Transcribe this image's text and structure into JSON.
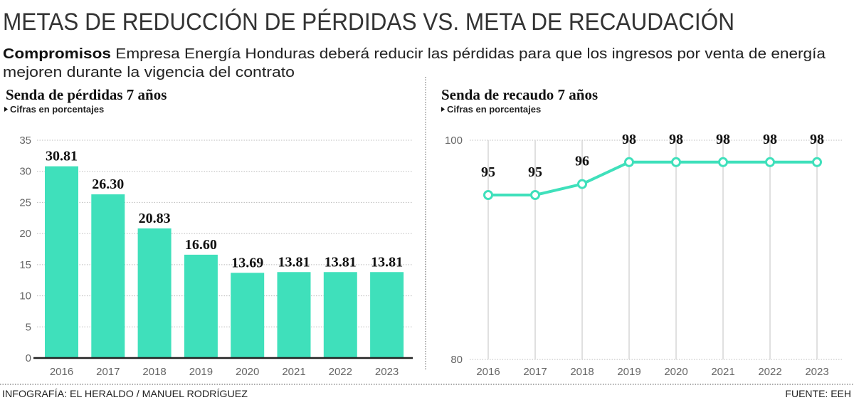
{
  "title": "METAS DE REDUCCIÓN DE PÉRDIDAS VS. META DE RECAUDACIÓN",
  "intro": {
    "lead": "Compromisos",
    "line1": " Empresa Energía Honduras deberá reducir las pérdidas para que los ingresos por venta de energía",
    "line2": "mejoren durante la vigencia del contrato"
  },
  "credit": "INFOGRAFÍA: EL HERALDO / MANUEL RODRÍGUEZ",
  "source": "FUENTE: EEH",
  "colors": {
    "accent": "#3fe0bb",
    "text": "#111111",
    "axis": "#666666"
  },
  "chart_data": [
    {
      "type": "bar",
      "title": "Senda de pérdidas 7 años",
      "subtitle": "Cifras en porcentajes",
      "categories": [
        "2016",
        "2017",
        "2018",
        "2019",
        "2020",
        "2021",
        "2022",
        "2023"
      ],
      "values": [
        30.81,
        26.3,
        20.83,
        16.6,
        13.69,
        13.81,
        13.81,
        13.81
      ],
      "value_labels": [
        "30.81",
        "26.30",
        "20.83",
        "16.60",
        "13.69",
        "13.81",
        "13.81",
        "13.81"
      ],
      "ylim": [
        0,
        35
      ],
      "yticks": [
        "0",
        "5",
        "10",
        "15",
        "20",
        "25",
        "30",
        "35"
      ],
      "grid": true
    },
    {
      "type": "line",
      "title": "Senda de recaudo 7 años",
      "subtitle": "Cifras en porcentajes",
      "categories": [
        "2016",
        "2017",
        "2018",
        "2019",
        "2020",
        "2021",
        "2022",
        "2023"
      ],
      "values": [
        95,
        95,
        96,
        98,
        98,
        98,
        98,
        98
      ],
      "value_labels": [
        "95",
        "95",
        "96",
        "98",
        "98",
        "98",
        "98",
        "98"
      ],
      "ylim": [
        80,
        100
      ],
      "yticks": [
        "80",
        "100"
      ],
      "grid": true
    }
  ]
}
